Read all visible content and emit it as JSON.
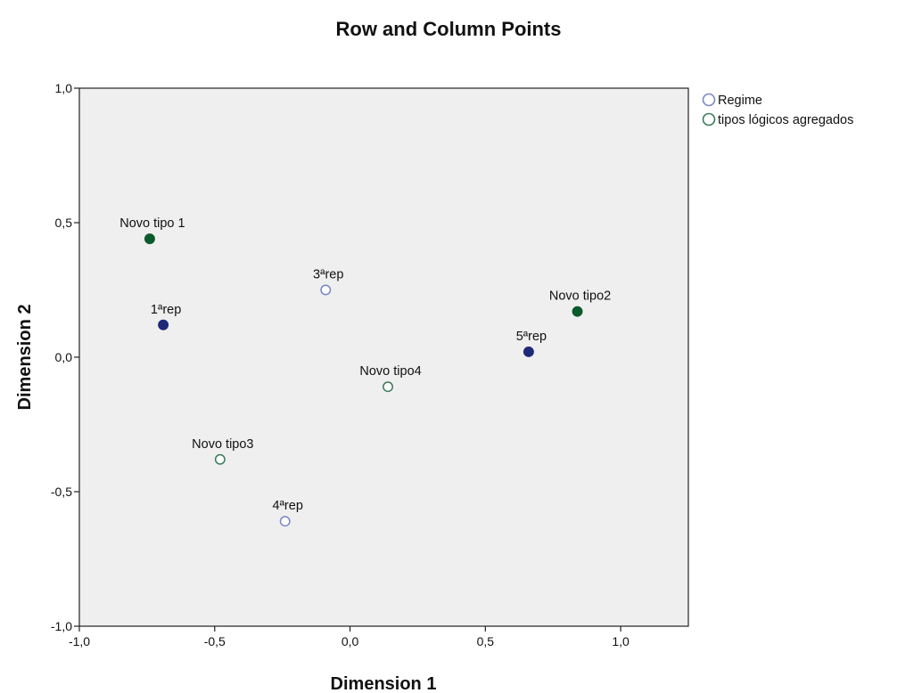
{
  "chart_data": {
    "type": "scatter",
    "title": "Row and Column Points",
    "xlabel": "Dimension 1",
    "ylabel": "Dimension 2",
    "xlim": [
      -1.0,
      1.25
    ],
    "ylim": [
      -1.0,
      1.0
    ],
    "xticks": [
      -1.0,
      -0.5,
      0.0,
      0.5,
      1.0
    ],
    "yticks": [
      -1.0,
      -0.5,
      0.0,
      0.5,
      1.0
    ],
    "xtick_labels": [
      "-1,0",
      "-0,5",
      "0,0",
      "0,5",
      "1,0"
    ],
    "ytick_labels": [
      "-1,0",
      "-0,5",
      "0,0",
      "0,5",
      "1,0"
    ],
    "grid": false,
    "legend_position": "right",
    "plot_background": "#efefef",
    "series": [
      {
        "name": "Regime",
        "color": "#7a86c8",
        "highlight_color": "#1e2a78",
        "points": [
          {
            "label": "1ªrep",
            "x": -0.69,
            "y": 0.12,
            "filled": true
          },
          {
            "label": "3ªrep",
            "x": -0.09,
            "y": 0.25,
            "filled": false
          },
          {
            "label": "4ªrep",
            "x": -0.24,
            "y": -0.61,
            "filled": false
          },
          {
            "label": "5ªrep",
            "x": 0.66,
            "y": 0.02,
            "filled": true
          }
        ]
      },
      {
        "name": "tipos lógicos agregados",
        "color": "#3c7a5a",
        "highlight_color": "#0b5a2c",
        "points": [
          {
            "label": "Novo tipo 1",
            "x": -0.74,
            "y": 0.44,
            "filled": true
          },
          {
            "label": "Novo tipo2",
            "x": 0.84,
            "y": 0.17,
            "filled": true
          },
          {
            "label": "Novo tipo3",
            "x": -0.48,
            "y": -0.38,
            "filled": false
          },
          {
            "label": "Novo tipo4",
            "x": 0.14,
            "y": -0.11,
            "filled": false
          }
        ]
      }
    ]
  }
}
